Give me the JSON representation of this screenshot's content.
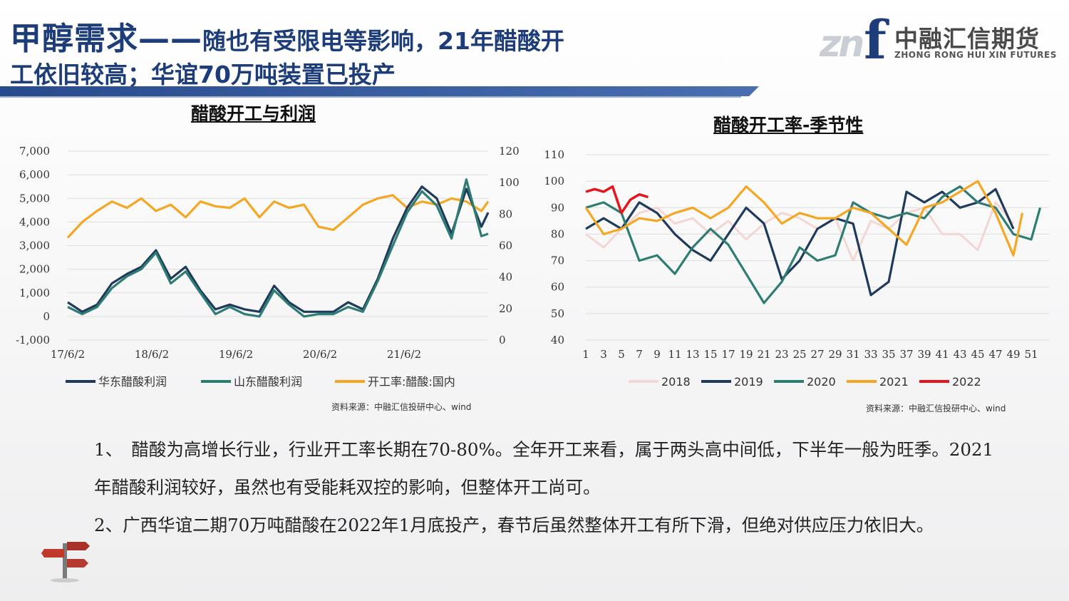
{
  "header": {
    "title_main": "甲醇需求——",
    "title_rest": "随也有受限电等影响，21年醋酸开",
    "title_line2": "工依旧较高；华谊70万吨装置已投产"
  },
  "logo": {
    "mark": "zn",
    "mark_f": "f",
    "name_cn": "中融汇信期货",
    "name_en": "ZHONG RONG HUI XIN FUTURES"
  },
  "colors": {
    "title": "#1d3d7a",
    "huadong": "#1f3b5c",
    "shandong": "#2e7d73",
    "rate": "#f5a623",
    "s2018": "#f2d7d5",
    "s2019": "#1f3b5c",
    "s2020": "#2e7d73",
    "s2021": "#f5a623",
    "s2022": "#e8141b"
  },
  "chart_data": [
    {
      "type": "line",
      "title": "醋酸开工与利润",
      "x_ticks": [
        "17/6/2",
        "18/6/2",
        "19/6/2",
        "20/6/2",
        "21/6/2"
      ],
      "y_left_ticks": [
        "7,000",
        "6,000",
        "5,000",
        "4,000",
        "3,000",
        "2,000",
        "1,000",
        "0",
        "-1,000"
      ],
      "y_left_range": [
        -1000,
        7000
      ],
      "y_right_ticks": [
        "120",
        "100",
        "80",
        "60",
        "40",
        "20",
        "0"
      ],
      "y_right_range": [
        0,
        120
      ],
      "grid": true,
      "legend_position": "bottom",
      "x_range": [
        "2017-06-02",
        "2022-03-01"
      ],
      "series": [
        {
          "name": "华东醋酸利润",
          "axis": "left",
          "x": [
            "2017-06-02",
            "2017-08-01",
            "2017-10-01",
            "2017-12-01",
            "2018-02-01",
            "2018-04-01",
            "2018-06-01",
            "2018-08-01",
            "2018-10-01",
            "2018-12-01",
            "2019-02-01",
            "2019-04-01",
            "2019-06-01",
            "2019-08-01",
            "2019-10-01",
            "2019-12-01",
            "2020-02-01",
            "2020-04-01",
            "2020-06-01",
            "2020-08-01",
            "2020-10-01",
            "2020-12-01",
            "2021-02-01",
            "2021-04-01",
            "2021-06-01",
            "2021-08-01",
            "2021-10-01",
            "2021-12-01",
            "2022-02-01",
            "2022-03-01"
          ],
          "values": [
            600,
            200,
            500,
            1400,
            1800,
            2100,
            2800,
            1600,
            2100,
            1100,
            300,
            500,
            300,
            200,
            1300,
            600,
            200,
            200,
            200,
            600,
            300,
            1600,
            3300,
            4600,
            5500,
            5000,
            3500,
            5400,
            3800,
            4400
          ]
        },
        {
          "name": "山东醋酸利润",
          "axis": "left",
          "x": [
            "2017-06-02",
            "2017-08-01",
            "2017-10-01",
            "2017-12-01",
            "2018-02-01",
            "2018-04-01",
            "2018-06-01",
            "2018-08-01",
            "2018-10-01",
            "2018-12-01",
            "2019-02-01",
            "2019-04-01",
            "2019-06-01",
            "2019-08-01",
            "2019-10-01",
            "2019-12-01",
            "2020-02-01",
            "2020-04-01",
            "2020-06-01",
            "2020-08-01",
            "2020-10-01",
            "2020-12-01",
            "2021-02-01",
            "2021-04-01",
            "2021-06-01",
            "2021-08-01",
            "2021-10-01",
            "2021-12-01",
            "2022-02-01",
            "2022-03-01"
          ],
          "values": [
            400,
            100,
            400,
            1200,
            1700,
            2000,
            2700,
            1400,
            1900,
            1000,
            100,
            400,
            100,
            0,
            1100,
            500,
            0,
            100,
            100,
            400,
            200,
            1500,
            3000,
            4400,
            5300,
            4700,
            3300,
            5800,
            3400,
            3500
          ]
        },
        {
          "name": "开工率:醋酸:国内",
          "axis": "right",
          "x": [
            "2017-06-02",
            "2017-08-01",
            "2017-10-01",
            "2017-12-01",
            "2018-02-01",
            "2018-04-01",
            "2018-06-01",
            "2018-08-01",
            "2018-10-01",
            "2018-12-01",
            "2019-02-01",
            "2019-04-01",
            "2019-06-01",
            "2019-08-01",
            "2019-10-01",
            "2019-12-01",
            "2020-02-01",
            "2020-04-01",
            "2020-06-01",
            "2020-08-01",
            "2020-10-01",
            "2020-12-01",
            "2021-02-01",
            "2021-04-01",
            "2021-06-01",
            "2021-08-01",
            "2021-10-01",
            "2021-12-01",
            "2022-02-01",
            "2022-03-01"
          ],
          "values": [
            65,
            75,
            82,
            88,
            84,
            90,
            82,
            86,
            78,
            88,
            85,
            84,
            90,
            78,
            88,
            84,
            86,
            72,
            70,
            78,
            86,
            90,
            92,
            84,
            88,
            86,
            90,
            88,
            82,
            88
          ]
        }
      ]
    },
    {
      "type": "line",
      "title": "醋酸开工率-季节性",
      "x_ticks": [
        "1",
        "3",
        "5",
        "7",
        "9",
        "11",
        "13",
        "15",
        "17",
        "19",
        "21",
        "23",
        "25",
        "27",
        "29",
        "31",
        "33",
        "35",
        "37",
        "39",
        "41",
        "43",
        "45",
        "47",
        "49",
        "51"
      ],
      "x_range": [
        1,
        53
      ],
      "y_ticks": [
        "110",
        "100",
        "90",
        "80",
        "70",
        "60",
        "50",
        "40"
      ],
      "y_range": [
        40,
        110
      ],
      "grid": true,
      "legend_position": "bottom",
      "series": [
        {
          "name": "2018",
          "x": [
            1,
            3,
            5,
            7,
            9,
            11,
            13,
            15,
            17,
            19,
            21,
            23,
            25,
            27,
            29,
            31,
            33,
            35,
            37,
            39,
            41,
            43,
            45,
            47,
            49
          ],
          "values": [
            80,
            75,
            82,
            88,
            90,
            84,
            86,
            80,
            85,
            78,
            84,
            88,
            86,
            82,
            86,
            70,
            85,
            82,
            88,
            90,
            80,
            80,
            74,
            92,
            84
          ]
        },
        {
          "name": "2019",
          "x": [
            1,
            3,
            5,
            7,
            9,
            11,
            13,
            15,
            17,
            19,
            21,
            23,
            25,
            27,
            29,
            31,
            33,
            35,
            37,
            39,
            41,
            43,
            45,
            47,
            49
          ],
          "values": [
            82,
            86,
            82,
            92,
            88,
            80,
            74,
            70,
            80,
            90,
            84,
            63,
            70,
            82,
            86,
            84,
            57,
            62,
            96,
            92,
            96,
            90,
            92,
            97,
            82
          ]
        },
        {
          "name": "2020",
          "x": [
            1,
            3,
            5,
            7,
            9,
            11,
            13,
            15,
            17,
            19,
            21,
            23,
            25,
            27,
            29,
            31,
            33,
            35,
            37,
            39,
            41,
            43,
            45,
            47,
            49,
            51,
            52
          ],
          "values": [
            90,
            92,
            88,
            70,
            72,
            65,
            75,
            82,
            76,
            65,
            54,
            62,
            75,
            70,
            72,
            92,
            88,
            86,
            88,
            86,
            94,
            98,
            92,
            90,
            80,
            78,
            90
          ]
        },
        {
          "name": "2021",
          "x": [
            1,
            3,
            5,
            7,
            9,
            11,
            13,
            15,
            17,
            19,
            21,
            23,
            25,
            27,
            29,
            31,
            33,
            35,
            37,
            39,
            41,
            43,
            45,
            47,
            49,
            50
          ],
          "values": [
            90,
            80,
            82,
            86,
            85,
            88,
            90,
            86,
            90,
            98,
            92,
            84,
            88,
            86,
            86,
            90,
            88,
            82,
            76,
            90,
            92,
            96,
            100,
            88,
            72,
            88
          ]
        },
        {
          "name": "2022",
          "x": [
            1,
            2,
            3,
            4,
            5,
            6,
            7,
            8
          ],
          "values": [
            96,
            97,
            96,
            98,
            88,
            93,
            95,
            94
          ]
        }
      ]
    }
  ],
  "sources": {
    "left": "资料来源：中融汇信投研中心、wind",
    "right": "资料来源：中融汇信投研中心、wind"
  },
  "body": {
    "p1": "1、　醋酸为高增长行业，行业开工率长期在70-80%。全年开工来看，属于两头高中间低，下半年一般为旺季。2021年醋酸利润较好，虽然也有受能耗双控的影响，但整体开工尚可。",
    "p2": "2、广西华谊二期70万吨醋酸在2022年1月底投产，春节后虽然整体开工有所下滑，但绝对供应压力依旧大。"
  }
}
